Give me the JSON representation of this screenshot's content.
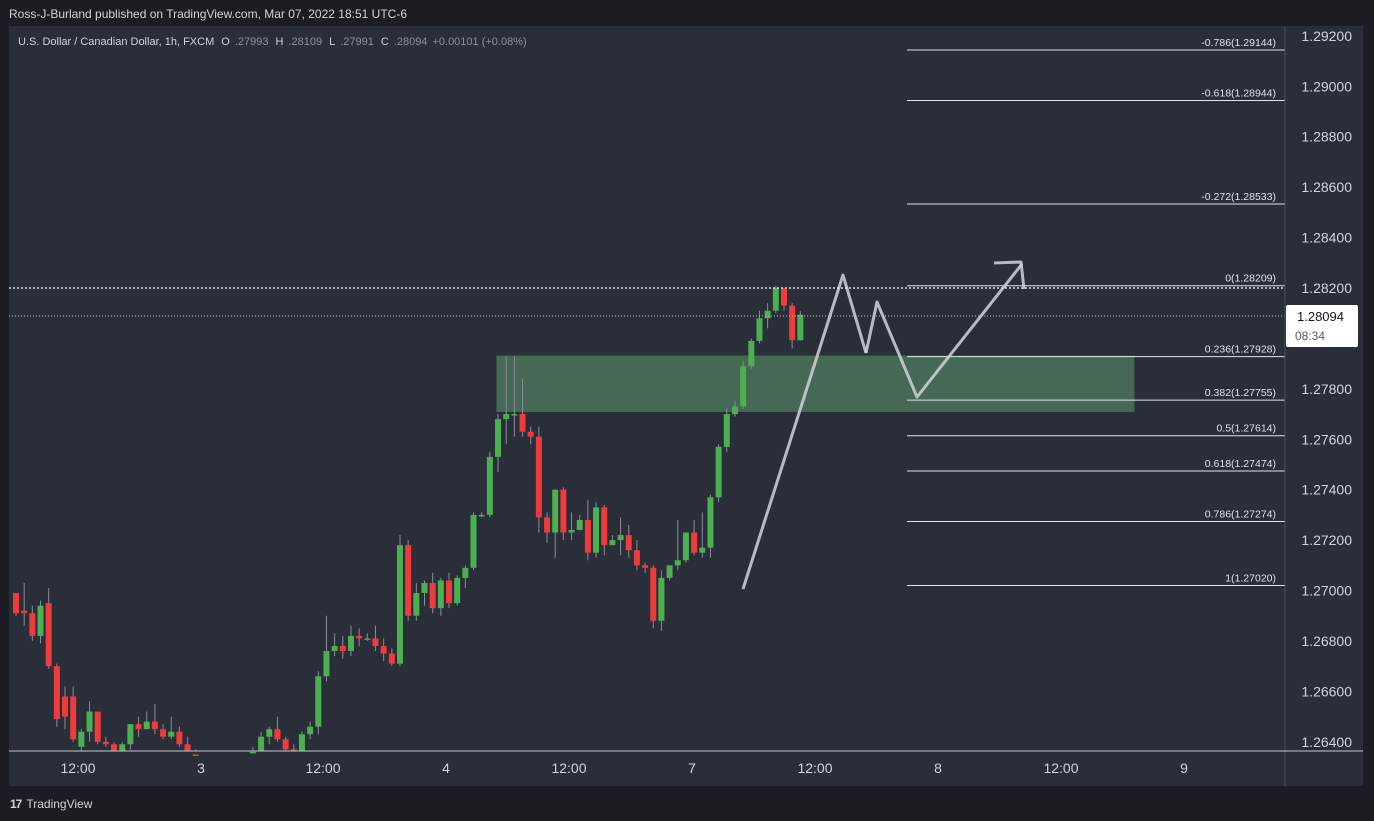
{
  "header": {
    "published_by": "Ross-J-Burland published on TradingView.com, Mar 07, 2022 18:51 UTC-6"
  },
  "legend": {
    "symbol": "U.S. Dollar / Canadian Dollar, 1h, FXCM",
    "o_label": "O",
    "o_value": ".27993",
    "h_label": "H",
    "h_value": ".28109",
    "l_label": "L",
    "l_value": ".27991",
    "c_label": "C",
    "c_value": ".28094",
    "change": "+0.00101 (+0.08%)"
  },
  "price_tag": {
    "price": "1.28094",
    "countdown": "08:34"
  },
  "footer": {
    "brand": "TradingView",
    "logo_icon": "tradingview-logo-icon"
  },
  "colors": {
    "background": "#2a2e39",
    "up": "#4caf50",
    "down": "#ef3b3b",
    "zone": "#4d7a5c",
    "arrow": "#d1d4dc"
  },
  "chart_data": {
    "type": "candlestick",
    "title": "U.S. Dollar / Canadian Dollar, 1h, FXCM",
    "ylim": [
      1.264,
      1.293
    ],
    "y_ticks": [
      "1.29200",
      "1.29000",
      "1.28800",
      "1.28600",
      "1.28400",
      "1.28200",
      "1.28000",
      "1.27800",
      "1.27600",
      "1.27400",
      "1.27200",
      "1.27000",
      "1.26800",
      "1.26600",
      "1.26400"
    ],
    "x_ticks": [
      "12:00",
      "3",
      "12:00",
      "4",
      "12:00",
      "7",
      "12:00",
      "8",
      "12:00",
      "9"
    ],
    "current_price": 1.28094,
    "grid": false,
    "fibonacci_levels": [
      {
        "label": "-0.786(1.29144)",
        "price": 1.29144
      },
      {
        "label": "-0.618(1.28944)",
        "price": 1.28944
      },
      {
        "label": "-0.272(1.28533)",
        "price": 1.28533
      },
      {
        "label": "0(1.28209)",
        "price": 1.28209
      },
      {
        "label": "0.236(1.27928)",
        "price": 1.27928
      },
      {
        "label": "0.382(1.27755)",
        "price": 1.27755
      },
      {
        "label": "0.5(1.27614)",
        "price": 1.27614
      },
      {
        "label": "0.618(1.27474)",
        "price": 1.27474
      },
      {
        "label": "0.786(1.27274)",
        "price": 1.27274
      },
      {
        "label": "1(1.27020)",
        "price": 1.2702
      }
    ],
    "zone": {
      "top": 1.2793,
      "bottom": 1.2771
    },
    "candles": [
      [
        1.2699,
        1.2699,
        1.269,
        1.2691
      ],
      [
        1.2692,
        1.2703,
        1.2686,
        1.2691
      ],
      [
        1.2691,
        1.2694,
        1.268,
        1.2682
      ],
      [
        1.2682,
        1.2696,
        1.2679,
        1.2694
      ],
      [
        1.2695,
        1.2701,
        1.2669,
        1.267
      ],
      [
        1.267,
        1.2671,
        1.2646,
        1.2649
      ],
      [
        1.2658,
        1.2662,
        1.2645,
        1.265
      ],
      [
        1.2658,
        1.2662,
        1.264,
        1.2641
      ],
      [
        1.2638,
        1.2645,
        1.2635,
        1.2644
      ],
      [
        1.2644,
        1.2656,
        1.264,
        1.2652
      ],
      [
        1.2652,
        1.2652,
        1.2639,
        1.264
      ],
      [
        1.264,
        1.2642,
        1.2638,
        1.2639
      ],
      [
        1.2639,
        1.264,
        1.2633,
        1.2634
      ],
      [
        1.2634,
        1.264,
        1.263,
        1.2639
      ],
      [
        1.2639,
        1.2647,
        1.2637,
        1.2647
      ],
      [
        1.2647,
        1.265,
        1.2642,
        1.2645
      ],
      [
        1.2645,
        1.2652,
        1.2645,
        1.2648
      ],
      [
        1.2648,
        1.2655,
        1.2643,
        1.2645
      ],
      [
        1.2645,
        1.2647,
        1.2641,
        1.2642
      ],
      [
        1.2642,
        1.265,
        1.2641,
        1.2644
      ],
      [
        1.2644,
        1.2646,
        1.2638,
        1.2639
      ],
      [
        1.2639,
        1.2642,
        1.2633,
        1.2635
      ],
      [
        1.2635,
        1.2637,
        1.2628,
        1.263
      ],
      [
        1.263,
        1.2632,
        1.262,
        1.2623
      ],
      [
        1.2623,
        1.2628,
        1.262,
        1.2626
      ],
      [
        1.2626,
        1.263,
        1.2622,
        1.2625
      ],
      [
        1.2625,
        1.263,
        1.2623,
        1.2628
      ],
      [
        1.2628,
        1.2633,
        1.262,
        1.2622
      ],
      [
        1.2622,
        1.2626,
        1.2618,
        1.2624
      ],
      [
        1.2624,
        1.2638,
        1.2623,
        1.2636
      ],
      [
        1.2636,
        1.2644,
        1.2634,
        1.2642
      ],
      [
        1.2642,
        1.2646,
        1.2639,
        1.2645
      ],
      [
        1.2645,
        1.265,
        1.264,
        1.2641
      ],
      [
        1.2641,
        1.2642,
        1.2635,
        1.2637
      ],
      [
        1.2637,
        1.2639,
        1.2631,
        1.2633
      ],
      [
        1.2633,
        1.2644,
        1.2632,
        1.2643
      ],
      [
        1.2643,
        1.2648,
        1.2641,
        1.2646
      ],
      [
        1.2646,
        1.2668,
        1.2643,
        1.2666
      ],
      [
        1.2666,
        1.269,
        1.2664,
        1.2676
      ],
      [
        1.2676,
        1.2683,
        1.2674,
        1.2678
      ],
      [
        1.2678,
        1.2682,
        1.2673,
        1.2676
      ],
      [
        1.2676,
        1.2686,
        1.2674,
        1.2682
      ],
      [
        1.2682,
        1.2685,
        1.2678,
        1.2681
      ],
      [
        1.2681,
        1.2683,
        1.268,
        1.2681
      ],
      [
        1.2681,
        1.2686,
        1.2676,
        1.2678
      ],
      [
        1.2678,
        1.2681,
        1.2672,
        1.2675
      ],
      [
        1.2675,
        1.2677,
        1.267,
        1.2671
      ],
      [
        1.2671,
        1.2722,
        1.267,
        1.2718
      ],
      [
        1.2718,
        1.272,
        1.2688,
        1.269
      ],
      [
        1.269,
        1.2703,
        1.2688,
        1.2699
      ],
      [
        1.2699,
        1.2704,
        1.2694,
        1.2703
      ],
      [
        1.2703,
        1.2707,
        1.2691,
        1.2693
      ],
      [
        1.2693,
        1.2705,
        1.269,
        1.2704
      ],
      [
        1.2704,
        1.2707,
        1.2693,
        1.2695
      ],
      [
        1.2695,
        1.2706,
        1.2694,
        1.2705
      ],
      [
        1.2705,
        1.271,
        1.2701,
        1.2709
      ],
      [
        1.2709,
        1.2731,
        1.2708,
        1.273
      ],
      [
        1.273,
        1.2731,
        1.2729,
        1.273
      ],
      [
        1.273,
        1.2755,
        1.2729,
        1.2753
      ],
      [
        1.2753,
        1.277,
        1.2747,
        1.2768
      ],
      [
        1.2768,
        1.2793,
        1.2758,
        1.277
      ],
      [
        1.277,
        1.2793,
        1.2761,
        1.277
      ],
      [
        1.277,
        1.2784,
        1.2761,
        1.2763
      ],
      [
        1.2763,
        1.2765,
        1.2758,
        1.2761
      ],
      [
        1.2761,
        1.2765,
        1.2723,
        1.2729
      ],
      [
        1.2729,
        1.2731,
        1.2719,
        1.2723
      ],
      [
        1.2723,
        1.274,
        1.2713,
        1.274
      ],
      [
        1.274,
        1.2741,
        1.272,
        1.2723
      ],
      [
        1.2723,
        1.2731,
        1.272,
        1.2724
      ],
      [
        1.2724,
        1.273,
        1.2725,
        1.2728
      ],
      [
        1.2728,
        1.2736,
        1.2712,
        1.2715
      ],
      [
        1.2715,
        1.2735,
        1.2713,
        1.2733
      ],
      [
        1.2733,
        1.2734,
        1.2714,
        1.2718
      ],
      [
        1.2718,
        1.2722,
        1.2718,
        1.272
      ],
      [
        1.272,
        1.2729,
        1.2714,
        1.2722
      ],
      [
        1.2722,
        1.2726,
        1.2713,
        1.2716
      ],
      [
        1.2716,
        1.272,
        1.2708,
        1.271
      ],
      [
        1.271,
        1.2711,
        1.2707,
        1.2709
      ],
      [
        1.2709,
        1.271,
        1.2685,
        1.2688
      ],
      [
        1.2688,
        1.2708,
        1.2684,
        1.2705
      ],
      [
        1.2705,
        1.271,
        1.2704,
        1.271
      ],
      [
        1.271,
        1.2728,
        1.2708,
        1.2712
      ],
      [
        1.2712,
        1.2723,
        1.2711,
        1.2723
      ],
      [
        1.2723,
        1.2728,
        1.2714,
        1.2715
      ],
      [
        1.2715,
        1.2731,
        1.2713,
        1.2717
      ],
      [
        1.2717,
        1.2738,
        1.2713,
        1.2737
      ],
      [
        1.2737,
        1.2758,
        1.2735,
        1.2757
      ],
      [
        1.2757,
        1.2772,
        1.2755,
        1.277
      ],
      [
        1.277,
        1.2775,
        1.2769,
        1.2773
      ],
      [
        1.2773,
        1.2791,
        1.2772,
        1.2789
      ],
      [
        1.2789,
        1.28,
        1.2788,
        1.2799
      ],
      [
        1.2799,
        1.2811,
        1.2798,
        1.2808
      ],
      [
        1.2808,
        1.2814,
        1.2804,
        1.2811
      ],
      [
        1.2811,
        1.28209,
        1.281,
        1.282
      ],
      [
        1.282,
        1.282,
        1.2811,
        1.2813
      ],
      [
        1.2813,
        1.2814,
        1.2796,
        1.27993
      ],
      [
        1.27993,
        1.28109,
        1.27991,
        1.28094
      ]
    ]
  }
}
